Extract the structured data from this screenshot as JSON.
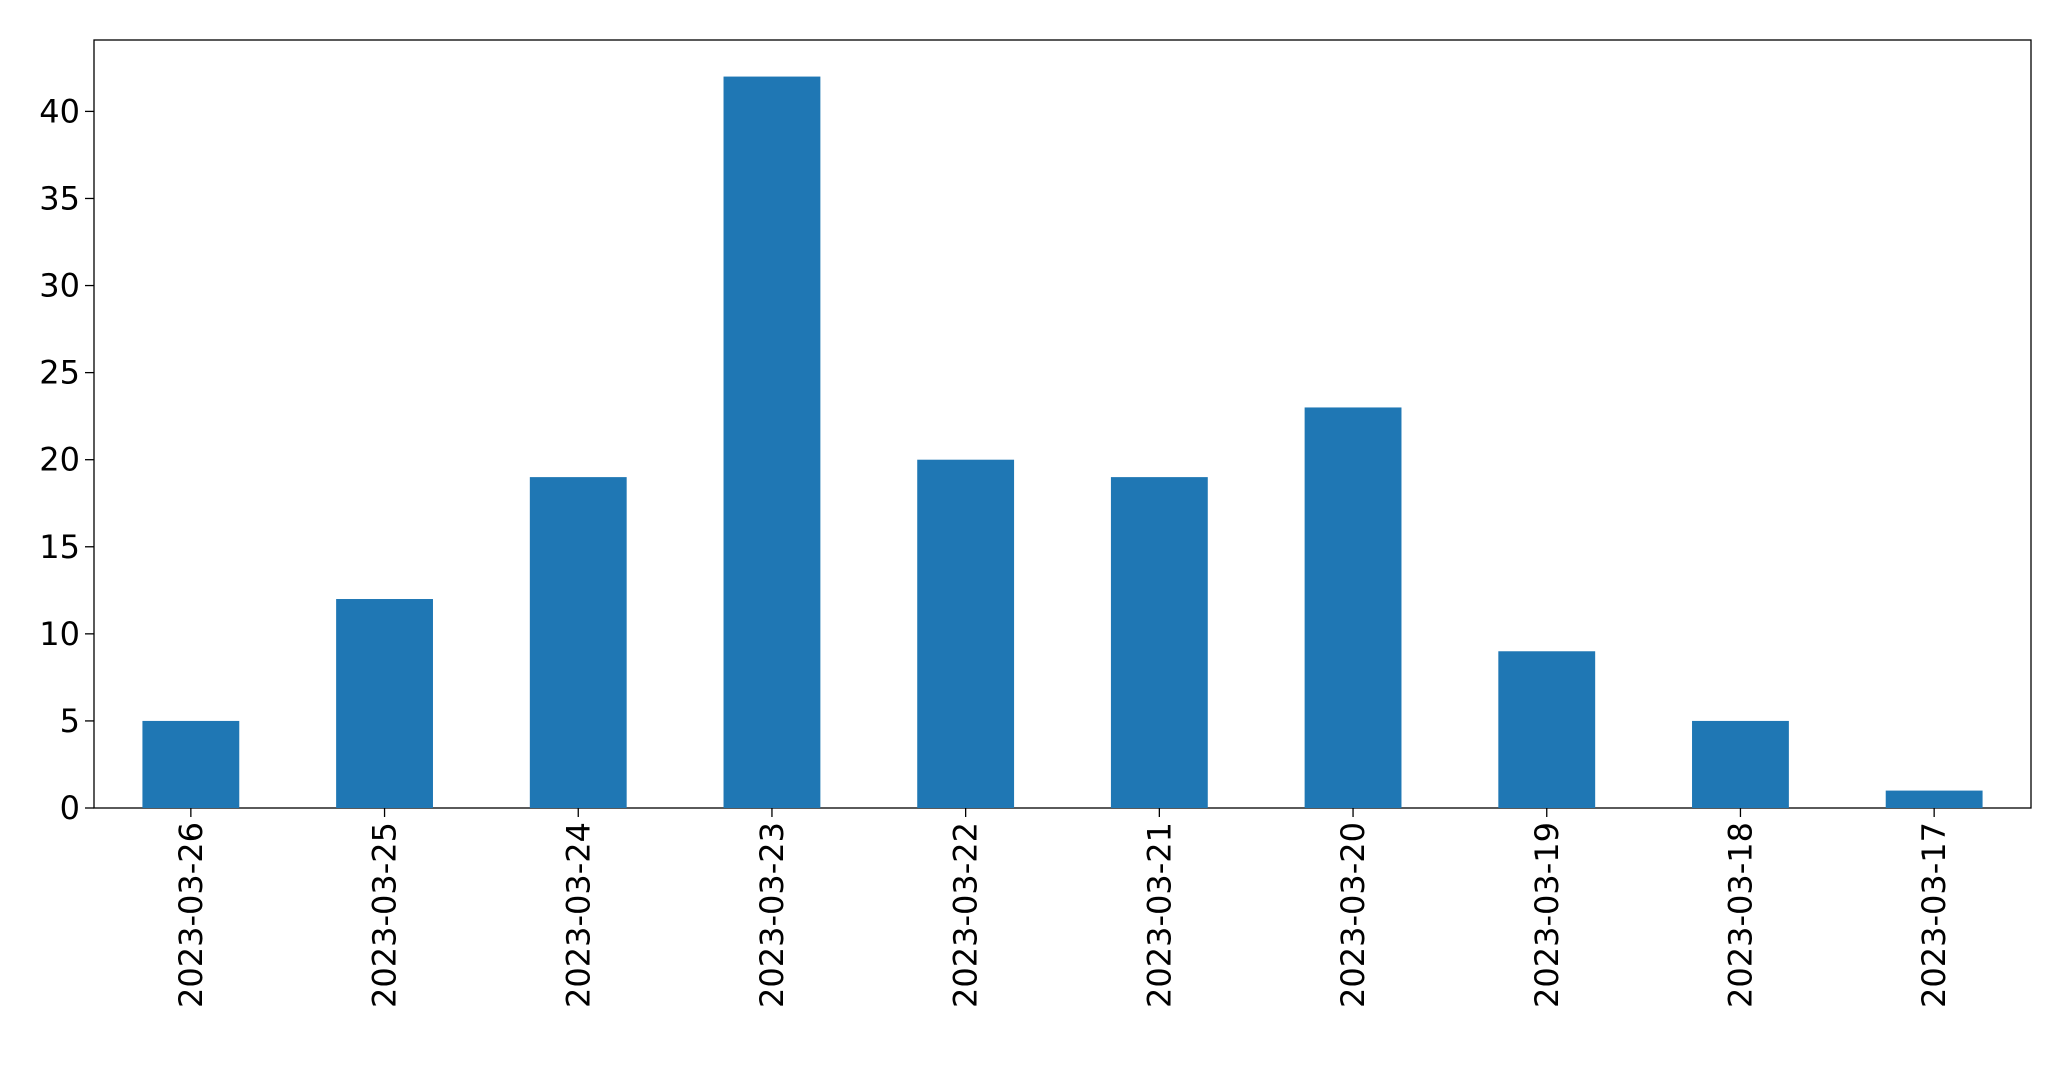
{
  "chart_data": {
    "type": "bar",
    "categories": [
      "2023-03-26",
      "2023-03-25",
      "2023-03-24",
      "2023-03-23",
      "2023-03-22",
      "2023-03-21",
      "2023-03-20",
      "2023-03-19",
      "2023-03-18",
      "2023-03-17"
    ],
    "values": [
      5,
      12,
      19,
      42,
      20,
      19,
      23,
      9,
      5,
      1
    ],
    "color": "#1f77b4",
    "ylim": [
      0,
      44.1
    ],
    "yticks": [
      0,
      5,
      10,
      15,
      20,
      25,
      30,
      35,
      40
    ],
    "grid": false
  }
}
